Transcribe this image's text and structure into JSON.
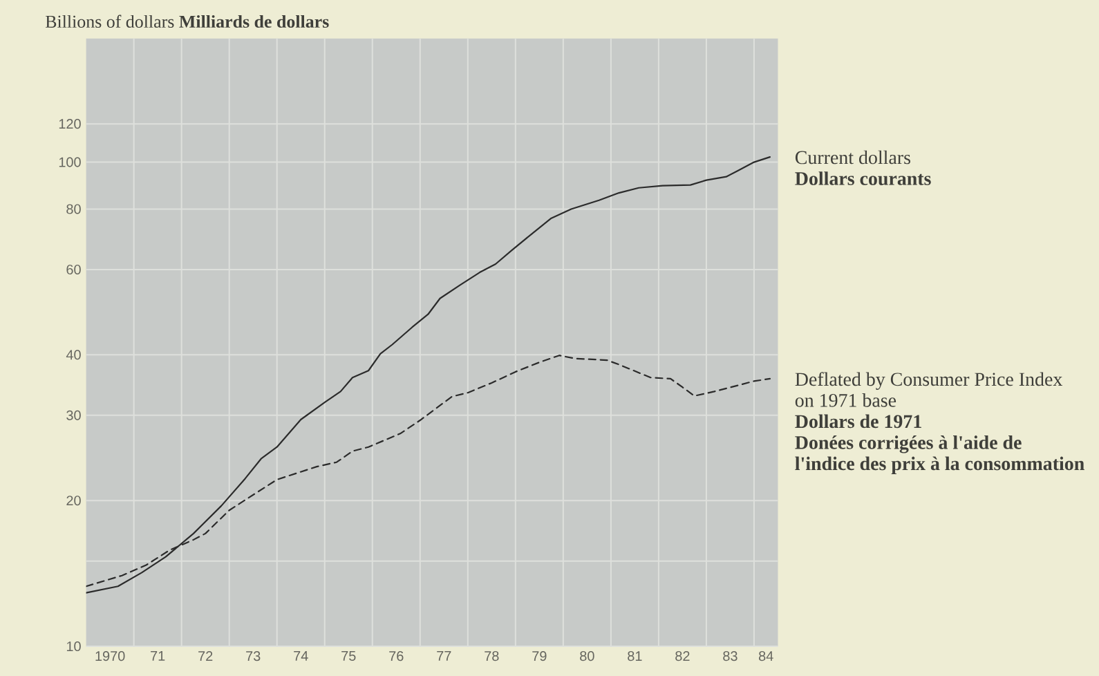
{
  "chart_data": {
    "type": "line",
    "ylabel": "Billions of dollars **Milliards de dollars**",
    "log": "y",
    "grid": true,
    "xlim": [
      "1970-01",
      "1984-07"
    ],
    "ylim": [
      10,
      180
    ],
    "xticks": [
      {
        "value": "1970-07",
        "label": "1970"
      },
      {
        "value": "1971",
        "label": null
      },
      {
        "value": "1971-07",
        "label": "71"
      },
      {
        "value": "1972",
        "label": null
      },
      {
        "value": "1972-07",
        "label": "72"
      },
      {
        "value": "1973",
        "label": null
      },
      {
        "value": "1973-07",
        "label": "73"
      },
      {
        "value": "1974",
        "label": null
      },
      {
        "value": "1974-07",
        "label": "74"
      },
      {
        "value": "1975",
        "label": null
      },
      {
        "value": "1975-07",
        "label": "75"
      },
      {
        "value": "1976",
        "label": null
      },
      {
        "value": "1976-07",
        "label": "76"
      },
      {
        "value": "1977",
        "label": null
      },
      {
        "value": "1977-07",
        "label": "77"
      },
      {
        "value": "1978",
        "label": null
      },
      {
        "value": "1978-07",
        "label": "78"
      },
      {
        "value": "1979",
        "label": null
      },
      {
        "value": "1979-07",
        "label": "79"
      },
      {
        "value": "1980",
        "label": null
      },
      {
        "value": "1980-07",
        "label": "80"
      },
      {
        "value": "1981",
        "label": null
      },
      {
        "value": "1981-07",
        "label": "81"
      },
      {
        "value": "1982",
        "label": null
      },
      {
        "value": "1982-07",
        "label": "82"
      },
      {
        "value": "1983",
        "label": null
      },
      {
        "value": "1983-07",
        "label": "83"
      },
      {
        "value": "1984",
        "label": null
      },
      {
        "value": "1984-04",
        "label": "84"
      }
    ],
    "yticks": [
      10,
      {
        "value": 15,
        "label": null
      },
      20,
      30,
      40,
      60,
      80,
      100,
      120
    ],
    "series": [
      {
        "name": "Current dollars **Dollars courants**",
        "color": "#2b2b2b",
        "line_style": "solid",
        "x": [
          "1970-01",
          "1970-09",
          "1971-03",
          "1971-09",
          "1972-04",
          "1972-11",
          "1973-05",
          "1973-09",
          "1974-01",
          "1974-07",
          "1975-01",
          "1975-05",
          "1975-08",
          "1975-12",
          "1976-03",
          "1976-06",
          "1976-11",
          "1977-03",
          "1977-06",
          "1977-11",
          "1978-04",
          "1978-08",
          "1978-12",
          "1979-05",
          "1979-10",
          "1980-03",
          "1980-10",
          "1981-03",
          "1981-08",
          "1982-02",
          "1982-09",
          "1983-01",
          "1983-06",
          "1983-09",
          "1984-01",
          "1984-05"
        ],
        "values": [
          12.9,
          13.3,
          14.2,
          15.3,
          17.1,
          19.5,
          22.2,
          24.4,
          25.8,
          29.4,
          31.9,
          33.6,
          35.9,
          37.1,
          40.2,
          42.0,
          45.6,
          48.5,
          52.3,
          55.7,
          59.2,
          61.6,
          65.7,
          71.0,
          76.6,
          80.0,
          83.4,
          86.4,
          88.5,
          89.4,
          89.7,
          91.8,
          93.3,
          96.1,
          100,
          102.5
        ]
      },
      {
        "name": "Deflated by Consumer Price Index on 1971 base **Dollars de 1971 Donées corrigées à l'aide de l'indice des prix à la consommation**",
        "color": "#2b2b2b",
        "line_style": "dashed",
        "x": [
          "1970-01",
          "1970-10",
          "1971-04",
          "1971-10",
          "1972-04",
          "1972-07",
          "1973-01",
          "1973-06",
          "1974-01",
          "1974-11",
          "1975-04",
          "1975-08",
          "1975-12",
          "1976-08",
          "1977-01",
          "1977-09",
          "1978-01",
          "1978-07",
          "1979-01",
          "1979-07",
          "1979-12",
          "1980-04",
          "1980-12",
          "1981-03",
          "1981-11",
          "1982-04",
          "1982-07",
          "1982-10",
          "1983-03",
          "1983-09",
          "1984-01",
          "1984-05"
        ],
        "values": [
          13.3,
          14.0,
          14.7,
          15.8,
          16.6,
          17.1,
          19.1,
          20.3,
          22.1,
          23.5,
          24.0,
          25.3,
          25.8,
          27.5,
          29.3,
          32.8,
          33.4,
          35.0,
          36.9,
          38.6,
          39.9,
          39.3,
          39.0,
          38.2,
          35.9,
          35.7,
          34.3,
          32.9,
          33.6,
          34.6,
          35.3,
          35.7
        ]
      }
    ]
  }
}
